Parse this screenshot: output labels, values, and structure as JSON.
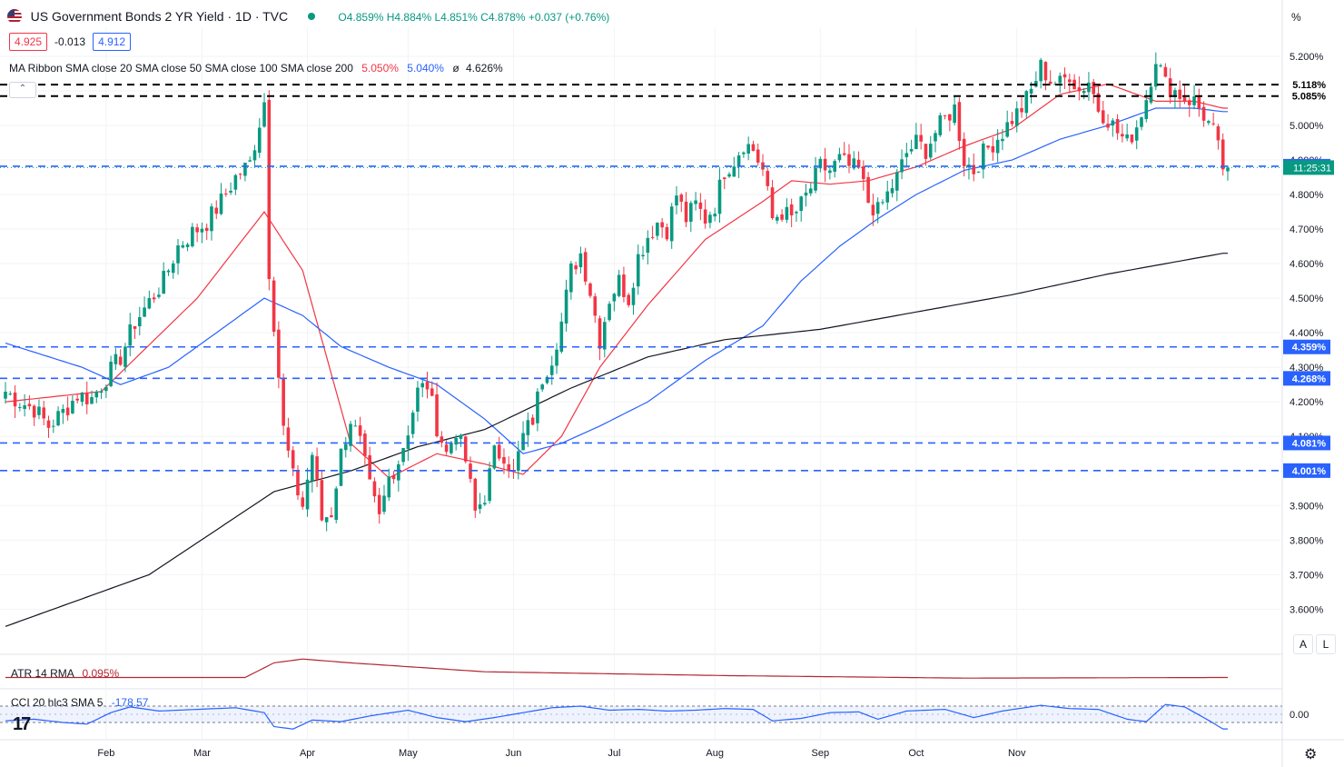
{
  "header": {
    "title": "US Government Bonds 2 YR Yield · 1D · TVC",
    "ohlc": "O4.859% H4.884% L4.851% C4.878% +0.037 (+0.76%)",
    "sell": "4.925",
    "spread": "-0.013",
    "buy": "4.912",
    "collapse_icon": "chevron-up-icon"
  },
  "ribbon_legend": {
    "label": "MA Ribbon SMA close 20 SMA close 50 SMA close 100 SMA close 200",
    "v1": "5.050%",
    "v2": "5.040%",
    "v3": "4.626%",
    "v3_prefix": "ø"
  },
  "atr_legend": {
    "label": "ATR 14 RMA",
    "value": "0.095%"
  },
  "cci_legend": {
    "label": "CCI 20 hlc3 SMA 5",
    "value": "-178.57"
  },
  "axis_unit": "%",
  "axis_buttons": {
    "auto": "A",
    "log": "L"
  },
  "countdown": "11:25:31",
  "colors": {
    "up": "#089981",
    "down": "#f23645",
    "sma20": "#f23645",
    "sma50": "#2962ff",
    "sma200": "#131722",
    "hline_blue": "#2962ff",
    "hline_black": "#000000",
    "atr": "#b22833",
    "cci": "#2962ff"
  },
  "chart_data": {
    "type": "candlestick",
    "title": "US Government Bonds 2 YR Yield · 1D · TVC",
    "ylim": [
      3.52,
      5.26
    ],
    "y_ticks": [
      "5.200%",
      "5.100%",
      "5.000%",
      "4.900%",
      "4.800%",
      "4.700%",
      "4.600%",
      "4.500%",
      "4.400%",
      "4.300%",
      "4.200%",
      "4.100%",
      "4.000%",
      "3.900%",
      "3.800%",
      "3.700%",
      "3.600%"
    ],
    "x_labels": [
      "Feb",
      "Mar",
      "Apr",
      "May",
      "Jun",
      "Jul",
      "Aug",
      "Sep",
      "Oct",
      "Nov"
    ],
    "horizontal_levels": [
      {
        "value": 5.118,
        "label": "5.118%",
        "style": "black-dashed"
      },
      {
        "value": 5.085,
        "label": "5.085%",
        "style": "black-dashed"
      },
      {
        "value": 4.882,
        "label": "4.882%",
        "style": "blue-dashed"
      },
      {
        "value": 4.359,
        "label": "4.359%",
        "style": "blue-dashed"
      },
      {
        "value": 4.268,
        "label": "4.268%",
        "style": "blue-dashed"
      },
      {
        "value": 4.081,
        "label": "4.081%",
        "style": "blue-dashed"
      },
      {
        "value": 4.001,
        "label": "4.001%",
        "style": "blue-dashed"
      }
    ],
    "last_price": 4.878,
    "close_path": [
      [
        0,
        4.23
      ],
      [
        3,
        4.2
      ],
      [
        6,
        4.18
      ],
      [
        9,
        4.13
      ],
      [
        12,
        4.17
      ],
      [
        15,
        4.22
      ],
      [
        18,
        4.21
      ],
      [
        21,
        4.27
      ],
      [
        24,
        4.33
      ],
      [
        27,
        4.43
      ],
      [
        30,
        4.49
      ],
      [
        33,
        4.55
      ],
      [
        36,
        4.65
      ],
      [
        39,
        4.69
      ],
      [
        42,
        4.72
      ],
      [
        45,
        4.78
      ],
      [
        48,
        4.85
      ],
      [
        51,
        4.89
      ],
      [
        54,
        5.07
      ],
      [
        55,
        4.58
      ],
      [
        56,
        4.43
      ],
      [
        58,
        4.12
      ],
      [
        60,
        3.98
      ],
      [
        62,
        3.9
      ],
      [
        64,
        4.05
      ],
      [
        66,
        3.86
      ],
      [
        68,
        3.88
      ],
      [
        70,
        4.05
      ],
      [
        72,
        4.15
      ],
      [
        74,
        4.08
      ],
      [
        76,
        3.95
      ],
      [
        78,
        3.86
      ],
      [
        80,
        3.98
      ],
      [
        82,
        4.03
      ],
      [
        84,
        4.12
      ],
      [
        86,
        4.23
      ],
      [
        88,
        4.25
      ],
      [
        90,
        4.13
      ],
      [
        92,
        4.05
      ],
      [
        94,
        4.12
      ],
      [
        96,
        4.03
      ],
      [
        98,
        3.88
      ],
      [
        100,
        3.93
      ],
      [
        102,
        4.05
      ],
      [
        104,
        4.05
      ],
      [
        106,
        3.99
      ],
      [
        108,
        4.1
      ],
      [
        110,
        4.15
      ],
      [
        112,
        4.27
      ],
      [
        114,
        4.33
      ],
      [
        116,
        4.43
      ],
      [
        118,
        4.58
      ],
      [
        120,
        4.63
      ],
      [
        122,
        4.52
      ],
      [
        124,
        4.38
      ],
      [
        126,
        4.5
      ],
      [
        128,
        4.55
      ],
      [
        130,
        4.5
      ],
      [
        132,
        4.62
      ],
      [
        134,
        4.68
      ],
      [
        136,
        4.72
      ],
      [
        138,
        4.7
      ],
      [
        140,
        4.8
      ],
      [
        142,
        4.73
      ],
      [
        144,
        4.77
      ],
      [
        146,
        4.73
      ],
      [
        148,
        4.77
      ],
      [
        150,
        4.87
      ],
      [
        152,
        4.9
      ],
      [
        154,
        4.95
      ],
      [
        156,
        4.93
      ],
      [
        158,
        4.87
      ],
      [
        160,
        4.73
      ],
      [
        162,
        4.75
      ],
      [
        164,
        4.73
      ],
      [
        166,
        4.77
      ],
      [
        168,
        4.82
      ],
      [
        170,
        4.88
      ],
      [
        172,
        4.87
      ],
      [
        174,
        4.9
      ],
      [
        176,
        4.88
      ],
      [
        178,
        4.87
      ],
      [
        180,
        4.78
      ],
      [
        182,
        4.75
      ],
      [
        184,
        4.8
      ],
      [
        186,
        4.85
      ],
      [
        188,
        4.92
      ],
      [
        190,
        4.95
      ],
      [
        192,
        4.93
      ],
      [
        194,
        4.98
      ],
      [
        196,
        5.02
      ],
      [
        198,
        5.05
      ],
      [
        200,
        4.9
      ],
      [
        202,
        4.87
      ],
      [
        204,
        4.92
      ],
      [
        206,
        4.95
      ],
      [
        208,
        4.98
      ],
      [
        210,
        5.02
      ],
      [
        212,
        5.05
      ],
      [
        214,
        5.1
      ],
      [
        216,
        5.17
      ],
      [
        218,
        5.13
      ],
      [
        220,
        5.12
      ],
      [
        222,
        5.15
      ],
      [
        224,
        5.1
      ],
      [
        226,
        5.13
      ],
      [
        228,
        5.05
      ],
      [
        230,
        5.02
      ],
      [
        232,
        4.98
      ],
      [
        234,
        4.95
      ],
      [
        236,
        5.0
      ],
      [
        238,
        5.08
      ],
      [
        240,
        5.2
      ],
      [
        242,
        5.12
      ],
      [
        244,
        5.1
      ],
      [
        246,
        5.08
      ],
      [
        248,
        5.07
      ],
      [
        250,
        5.03
      ],
      [
        252,
        4.98
      ],
      [
        254,
        4.88
      ]
    ],
    "series": [
      {
        "name": "SMA close 20",
        "values": [
          [
            0,
            4.2
          ],
          [
            20,
            4.23
          ],
          [
            40,
            4.5
          ],
          [
            54,
            4.75
          ],
          [
            62,
            4.58
          ],
          [
            72,
            4.08
          ],
          [
            80,
            3.98
          ],
          [
            90,
            4.05
          ],
          [
            100,
            4.02
          ],
          [
            108,
            3.99
          ],
          [
            116,
            4.1
          ],
          [
            124,
            4.3
          ],
          [
            134,
            4.48
          ],
          [
            146,
            4.67
          ],
          [
            158,
            4.78
          ],
          [
            164,
            4.84
          ],
          [
            172,
            4.83
          ],
          [
            180,
            4.84
          ],
          [
            190,
            4.88
          ],
          [
            200,
            4.94
          ],
          [
            210,
            4.99
          ],
          [
            220,
            5.09
          ],
          [
            230,
            5.12
          ],
          [
            240,
            5.07
          ],
          [
            248,
            5.07
          ],
          [
            254,
            5.05
          ]
        ]
      },
      {
        "name": "SMA close 50",
        "values": [
          [
            0,
            4.37
          ],
          [
            16,
            4.3
          ],
          [
            24,
            4.25
          ],
          [
            34,
            4.3
          ],
          [
            44,
            4.4
          ],
          [
            54,
            4.5
          ],
          [
            62,
            4.45
          ],
          [
            70,
            4.36
          ],
          [
            80,
            4.3
          ],
          [
            90,
            4.25
          ],
          [
            100,
            4.15
          ],
          [
            108,
            4.05
          ],
          [
            116,
            4.08
          ],
          [
            124,
            4.13
          ],
          [
            134,
            4.2
          ],
          [
            146,
            4.32
          ],
          [
            158,
            4.42
          ],
          [
            166,
            4.55
          ],
          [
            174,
            4.65
          ],
          [
            182,
            4.73
          ],
          [
            190,
            4.8
          ],
          [
            200,
            4.87
          ],
          [
            210,
            4.9
          ],
          [
            220,
            4.96
          ],
          [
            230,
            5.0
          ],
          [
            240,
            5.05
          ],
          [
            248,
            5.05
          ],
          [
            254,
            5.04
          ]
        ]
      },
      {
        "name": "SMA close 200",
        "values": [
          [
            0,
            3.55
          ],
          [
            30,
            3.7
          ],
          [
            56,
            3.94
          ],
          [
            72,
            4.0
          ],
          [
            86,
            4.07
          ],
          [
            100,
            4.12
          ],
          [
            118,
            4.24
          ],
          [
            134,
            4.33
          ],
          [
            150,
            4.38
          ],
          [
            170,
            4.41
          ],
          [
            190,
            4.46
          ],
          [
            210,
            4.51
          ],
          [
            230,
            4.57
          ],
          [
            254,
            4.63
          ]
        ]
      }
    ],
    "atr": [
      [
        0,
        0.095
      ],
      [
        50,
        0.095
      ],
      [
        56,
        0.118
      ],
      [
        62,
        0.124
      ],
      [
        72,
        0.118
      ],
      [
        100,
        0.104
      ],
      [
        150,
        0.098
      ],
      [
        200,
        0.094
      ],
      [
        254,
        0.095
      ]
    ],
    "cci": [
      [
        0,
        -80
      ],
      [
        6,
        -60
      ],
      [
        12,
        -100
      ],
      [
        17,
        -120
      ],
      [
        22,
        20
      ],
      [
        26,
        90
      ],
      [
        32,
        40
      ],
      [
        40,
        60
      ],
      [
        48,
        80
      ],
      [
        54,
        20
      ],
      [
        56,
        -150
      ],
      [
        60,
        -180
      ],
      [
        64,
        -70
      ],
      [
        70,
        -90
      ],
      [
        76,
        -20
      ],
      [
        84,
        50
      ],
      [
        90,
        -40
      ],
      [
        96,
        -90
      ],
      [
        102,
        -40
      ],
      [
        108,
        20
      ],
      [
        114,
        80
      ],
      [
        120,
        100
      ],
      [
        126,
        50
      ],
      [
        132,
        60
      ],
      [
        138,
        40
      ],
      [
        144,
        50
      ],
      [
        150,
        70
      ],
      [
        156,
        60
      ],
      [
        160,
        -80
      ],
      [
        166,
        -50
      ],
      [
        172,
        20
      ],
      [
        178,
        30
      ],
      [
        182,
        -60
      ],
      [
        188,
        40
      ],
      [
        196,
        60
      ],
      [
        202,
        -40
      ],
      [
        208,
        40
      ],
      [
        216,
        110
      ],
      [
        222,
        70
      ],
      [
        228,
        60
      ],
      [
        234,
        -60
      ],
      [
        238,
        -90
      ],
      [
        242,
        120
      ],
      [
        246,
        90
      ],
      [
        250,
        -40
      ],
      [
        254,
        -178.57
      ]
    ],
    "cci_zero_label": "0.00"
  }
}
